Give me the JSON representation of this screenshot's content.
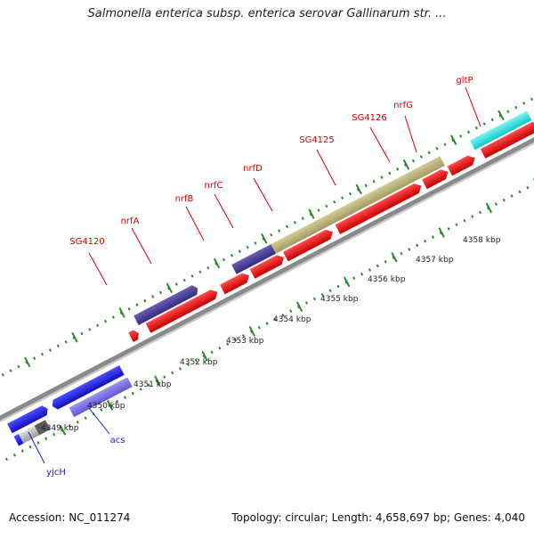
{
  "title": "Salmonella enterica subsp. enterica serovar Gallinarum str. ...",
  "footer": {
    "accession": "Accession: NC_011274",
    "stats": "Topology: circular; Length: 4,658,697 bp; Genes: 4,040"
  },
  "colors": {
    "red": "#e60000",
    "navy": "#4b3f99",
    "olive": "#b9b07a",
    "blue": "#1a1ae6",
    "lavender": "#7a6ee6",
    "cyan": "#19e6e6",
    "gray": "#808080",
    "tick": "#2a8a2a"
  },
  "genes": [
    {
      "name": "SG4120",
      "label": "SG4120",
      "color": "red"
    },
    {
      "name": "nrfA",
      "label": "nrfA",
      "color": "navy"
    },
    {
      "name": "nrfB",
      "label": "nrfB",
      "color": "red"
    },
    {
      "name": "nrfC",
      "label": "nrfC",
      "color": "red"
    },
    {
      "name": "nrfD",
      "label": "nrfD",
      "color": "red"
    },
    {
      "name": "SG4125",
      "label": "SG4125",
      "color": "olive"
    },
    {
      "name": "SG4126",
      "label": "SG4126",
      "color": "red"
    },
    {
      "name": "nrfG",
      "label": "nrfG",
      "color": "red"
    },
    {
      "name": "gltP",
      "label": "gltP",
      "color": "cyan"
    },
    {
      "name": "acs",
      "label": "acs",
      "color": "lavender"
    },
    {
      "name": "yjcH",
      "label": "yjcH",
      "color": "blue"
    }
  ],
  "kbp_labels": [
    "4349 kbp",
    "4350 kbp",
    "4351 kbp",
    "4352 kbp",
    "4353 kbp",
    "4354 kbp",
    "4355 kbp",
    "4356 kbp",
    "4357 kbp",
    "4358 kbp"
  ]
}
